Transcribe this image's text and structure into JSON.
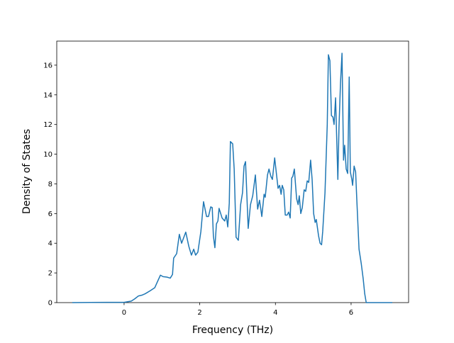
{
  "chart_data": {
    "type": "line",
    "xlabel": "Frequency (THz)",
    "ylabel": "Density of States",
    "color": "#1f77b4",
    "xlim": [
      -1.78,
      7.52
    ],
    "ylim": [
      0,
      17.62
    ],
    "xticks": [
      0,
      2,
      4,
      6
    ],
    "yticks": [
      0,
      2,
      4,
      6,
      8,
      10,
      12,
      14,
      16
    ],
    "x": [
      -1.37,
      -0.47,
      0,
      0.19,
      0.28,
      0.38,
      0.47,
      0.56,
      0.69,
      0.81,
      0.88,
      0.96,
      1.03,
      1.13,
      1.22,
      1.28,
      1.31,
      1.39,
      1.46,
      1.52,
      1.63,
      1.71,
      1.78,
      1.84,
      1.89,
      1.95,
      2.03,
      2.1,
      2.18,
      2.23,
      2.29,
      2.33,
      2.36,
      2.4,
      2.44,
      2.48,
      2.51,
      2.59,
      2.66,
      2.7,
      2.74,
      2.78,
      2.81,
      2.87,
      2.91,
      2.96,
      3.02,
      3.08,
      3.13,
      3.17,
      3.21,
      3.28,
      3.34,
      3.4,
      3.47,
      3.53,
      3.58,
      3.64,
      3.7,
      3.73,
      3.79,
      3.83,
      3.88,
      3.92,
      3.98,
      4.03,
      4.07,
      4.11,
      4.15,
      4.18,
      4.22,
      4.26,
      4.31,
      4.35,
      4.39,
      4.43,
      4.46,
      4.5,
      4.56,
      4.6,
      4.63,
      4.67,
      4.71,
      4.76,
      4.8,
      4.84,
      4.88,
      4.93,
      4.97,
      5.01,
      5.05,
      5.08,
      5.14,
      5.18,
      5.22,
      5.25,
      5.31,
      5.37,
      5.4,
      5.44,
      5.48,
      5.52,
      5.55,
      5.59,
      5.65,
      5.68,
      5.72,
      5.76,
      5.8,
      5.83,
      5.87,
      5.91,
      5.95,
      5.98,
      6.02,
      6.04,
      6.08,
      6.12,
      6.15,
      6.21,
      6.27,
      6.32,
      6.36,
      6.4,
      7.09
    ],
    "values": [
      0,
      0.02,
      0.02,
      0.1,
      0.25,
      0.45,
      0.5,
      0.6,
      0.8,
      1.0,
      1.4,
      1.85,
      1.75,
      1.72,
      1.65,
      1.9,
      3.0,
      3.3,
      4.6,
      4.0,
      4.75,
      3.8,
      3.2,
      3.6,
      3.2,
      3.4,
      4.8,
      6.8,
      5.8,
      5.8,
      6.45,
      6.4,
      4.5,
      3.7,
      5.3,
      5.5,
      6.35,
      5.7,
      5.5,
      5.9,
      5.1,
      6.7,
      10.85,
      10.7,
      9.0,
      4.4,
      4.2,
      6.6,
      7.4,
      9.2,
      9.5,
      5.0,
      6.6,
      7.2,
      8.6,
      6.3,
      6.9,
      5.8,
      7.3,
      7.1,
      8.6,
      9.0,
      8.5,
      8.3,
      9.75,
      8.6,
      7.7,
      7.9,
      7.3,
      7.9,
      7.6,
      5.9,
      5.9,
      6.1,
      5.7,
      8.4,
      8.5,
      9.0,
      7.0,
      6.6,
      7.2,
      6.0,
      6.4,
      7.6,
      7.5,
      8.2,
      8.1,
      9.6,
      8.3,
      6.0,
      5.4,
      5.6,
      4.5,
      4.0,
      3.9,
      4.8,
      7.4,
      12.0,
      16.7,
      16.3,
      12.6,
      12.5,
      12.0,
      13.8,
      8.3,
      11.8,
      14.8,
      16.8,
      9.6,
      10.6,
      9.0,
      8.7,
      15.2,
      8.8,
      8.3,
      7.9,
      9.2,
      8.8,
      7.0,
      3.6,
      2.6,
      1.6,
      0.6,
      0,
      0
    ]
  }
}
